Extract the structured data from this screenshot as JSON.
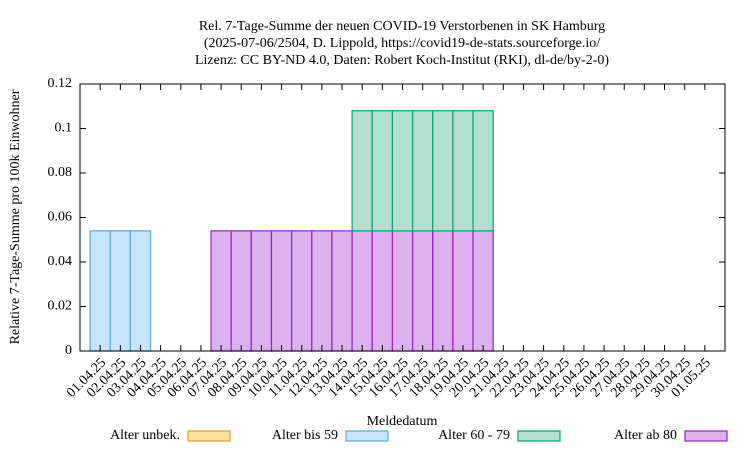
{
  "chart_data": {
    "type": "bar",
    "stacked": true,
    "title": [
      "Rel. 7-Tage-Summe der neuen COVID-19 Verstorbenen in SK Hamburg",
      "(2025-07-06/2504, D. Lippold, https://covid19-de-stats.sourceforge.io/",
      "Lizenz: CC BY-ND 4.0, Daten: Robert Koch-Institut (RKI), dl-de/by-2-0)"
    ],
    "x_label": "Meldedatum",
    "y_label": "Relative 7-Tage-Summe pro 100k Einwohner",
    "categories": [
      "01.04.25",
      "02.04.25",
      "03.04.25",
      "04.04.25",
      "05.04.25",
      "06.04.25",
      "07.04.25",
      "08.04.25",
      "09.04.25",
      "10.04.25",
      "11.04.25",
      "12.04.25",
      "13.04.25",
      "14.04.25",
      "15.04.25",
      "16.04.25",
      "17.04.25",
      "18.04.25",
      "19.04.25",
      "20.04.25",
      "21.04.25",
      "22.04.25",
      "23.04.25",
      "24.04.25",
      "25.04.25",
      "26.04.25",
      "27.04.25",
      "28.04.25",
      "29.04.25",
      "30.04.25",
      "01.05.25"
    ],
    "series": [
      {
        "name": "Alter unbek.",
        "color": "#e0a020",
        "fill": "#fde0a0",
        "values": [
          0,
          0,
          0,
          0,
          0,
          0,
          0,
          0,
          0,
          0,
          0,
          0,
          0,
          0,
          0,
          0,
          0,
          0,
          0,
          0,
          0,
          0,
          0,
          0,
          0,
          0,
          0,
          0,
          0,
          0,
          0
        ]
      },
      {
        "name": "Alter bis 59",
        "color": "#5aa8d8",
        "fill": "#c8e4f8",
        "values": [
          0.054,
          0.054,
          0.054,
          0,
          0,
          0,
          0,
          0,
          0,
          0,
          0,
          0,
          0,
          0,
          0,
          0,
          0,
          0,
          0,
          0,
          0,
          0,
          0,
          0,
          0,
          0,
          0,
          0,
          0,
          0,
          0
        ]
      },
      {
        "name": "Alter 60 - 79",
        "color": "#10a070",
        "fill": "#b2e0d0",
        "values": [
          0,
          0,
          0,
          0,
          0,
          0,
          0,
          0,
          0,
          0,
          0,
          0,
          0,
          0.054,
          0.054,
          0.054,
          0.054,
          0.054,
          0.054,
          0.054,
          0,
          0,
          0,
          0,
          0,
          0,
          0,
          0,
          0,
          0,
          0
        ]
      },
      {
        "name": "Alter ab 80",
        "color": "#9a20c8",
        "fill": "#ddb0ee",
        "values": [
          0,
          0,
          0,
          0,
          0,
          0,
          0.054,
          0.054,
          0.054,
          0.054,
          0.054,
          0.054,
          0.054,
          0.054,
          0.054,
          0.054,
          0.054,
          0.054,
          0.054,
          0.054,
          0,
          0,
          0,
          0,
          0,
          0,
          0,
          0,
          0,
          0,
          0
        ]
      }
    ],
    "ylim": [
      0,
      0.12
    ],
    "yticks": [
      0,
      0.02,
      0.04,
      0.06,
      0.08,
      0.1,
      0.12
    ],
    "grid": false,
    "legend": "bottom"
  }
}
